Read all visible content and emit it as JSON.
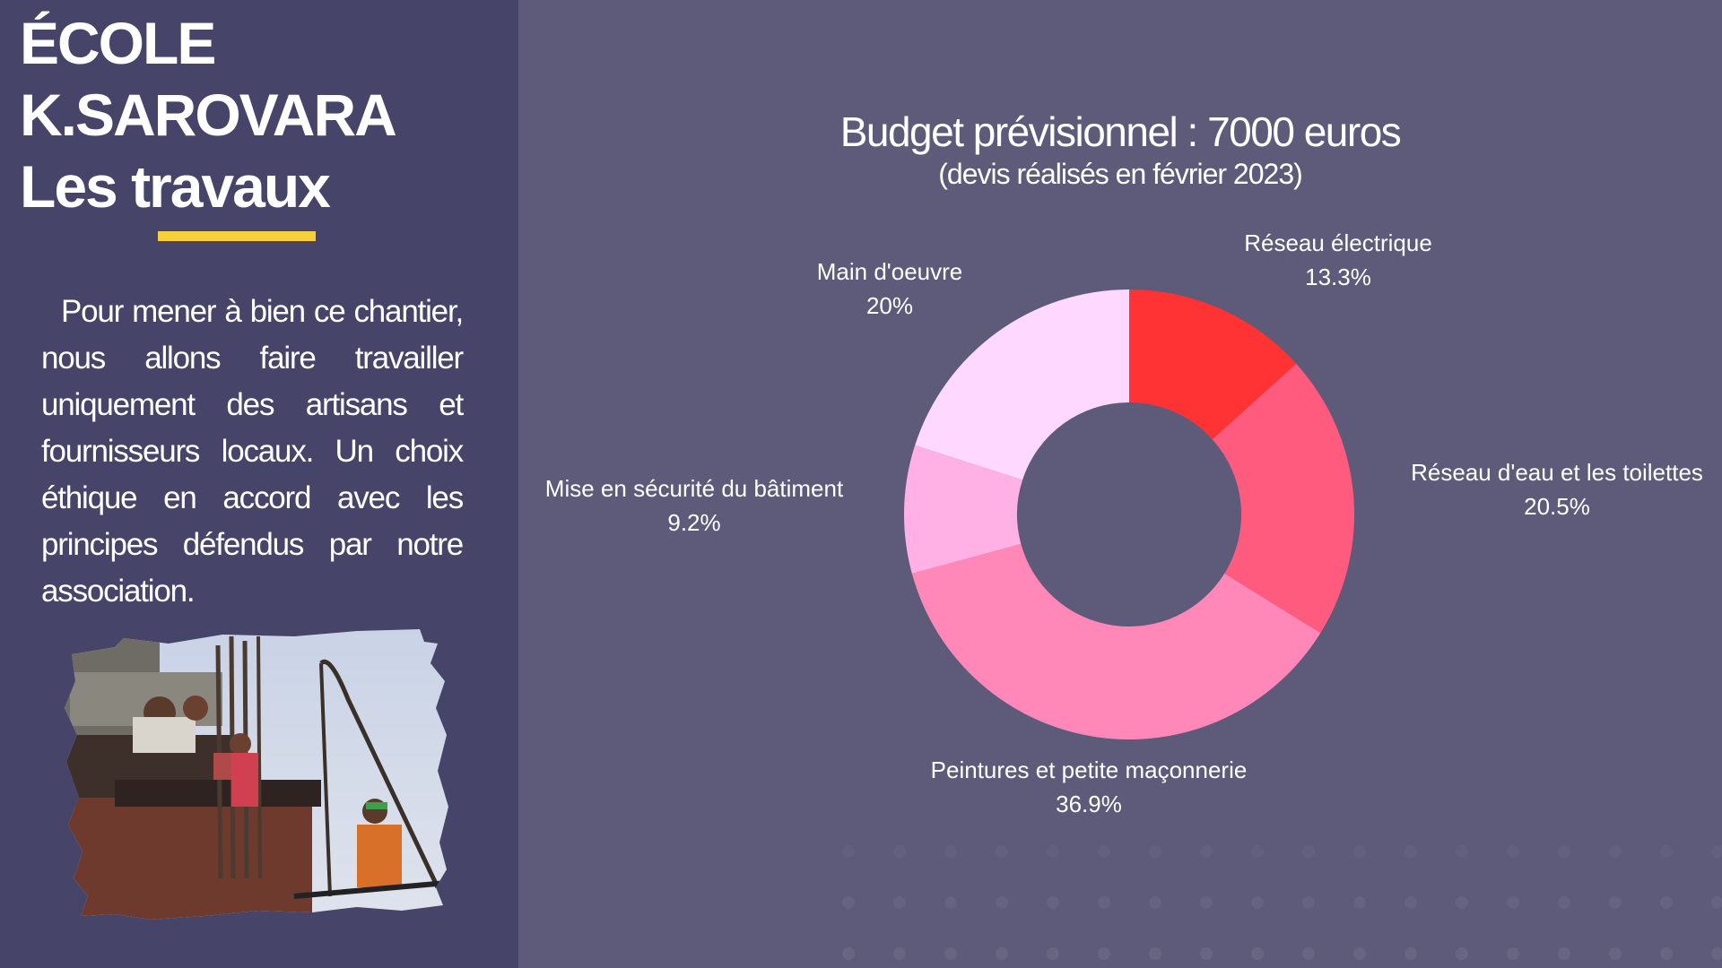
{
  "sidebar": {
    "title_line1": "ÉCOLE",
    "title_line2": "K.SAROVARA",
    "title_line3": "Les travaux",
    "description": "Pour mener à bien ce chantier, nous allons faire travailler uniquement des artisans et fournisseurs locaux. Un choix éthique en accord avec les principes défendus par notre association.",
    "photo_icon": "construction-workers-photo"
  },
  "colors": {
    "background": "#5d5a7a",
    "sidebar_background": "#464468",
    "accent_underline": "#f7d137"
  },
  "chart_data": {
    "type": "pie",
    "donut": true,
    "title": "Budget prévisionnel : 7000 euros",
    "subtitle": "(devis réalisés en février 2023)",
    "legend": "none",
    "slices": [
      {
        "name": "Réseau électrique",
        "value": 13.3,
        "label": "13.3%",
        "color": "#ff3333"
      },
      {
        "name": "Réseau d'eau et les toilettes",
        "value": 20.5,
        "label": "20.5%",
        "color": "#ff5b7f"
      },
      {
        "name": "Peintures et petite maçonnerie",
        "value": 36.9,
        "label": "36.9%",
        "color": "#ff88b9"
      },
      {
        "name": "Mise en sécurité du bâtiment",
        "value": 9.2,
        "label": "9.2%",
        "color": "#ffb1e6"
      },
      {
        "name": "Main d'oeuvre",
        "value": 20,
        "label": "20%",
        "color": "#ffd8ff"
      }
    ]
  }
}
